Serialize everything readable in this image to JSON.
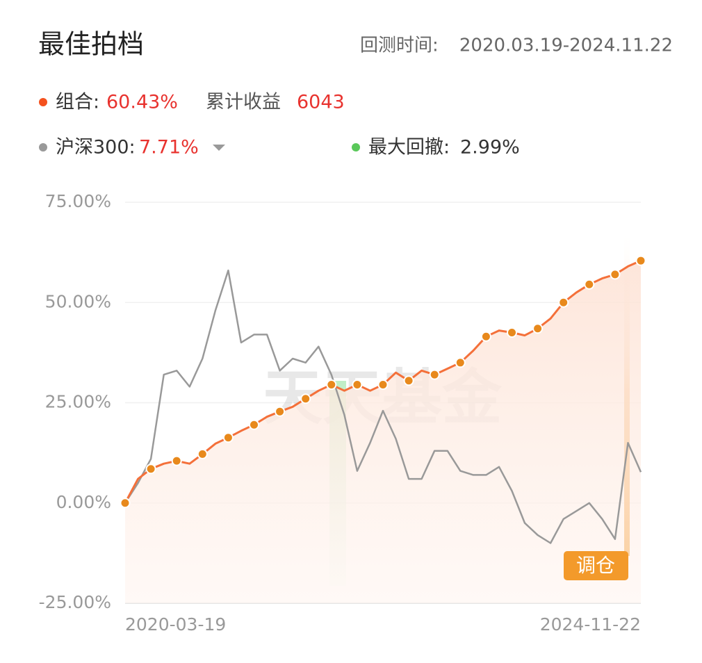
{
  "header": {
    "title": "最佳拍档",
    "period_label": "回测时间:",
    "period": "2020.03.19-2024.11.22"
  },
  "legend": {
    "portfolio_label": "组合:",
    "portfolio_return": "60.43%",
    "cumulative_label": "累计收益",
    "cumulative_value": "6043",
    "benchmark_label": "沪深300:",
    "benchmark_return": "7.71%",
    "drawdown_label": "最大回撤:",
    "drawdown_value": "2.99%"
  },
  "watermark": "天天基金",
  "badge": "调仓",
  "chart_data": {
    "type": "line",
    "categories": [
      "2020-03-19",
      null,
      null,
      null,
      null,
      null,
      null,
      null,
      null,
      null,
      null,
      null,
      null,
      null,
      null,
      null,
      null,
      null,
      null,
      null,
      null,
      null,
      null,
      null,
      null,
      null,
      null,
      null,
      null,
      null,
      null,
      null,
      null,
      null,
      null,
      null,
      null,
      null,
      null,
      null,
      "2024-11-22"
    ],
    "series": [
      {
        "name": "组合",
        "color": "#f4703a",
        "values": [
          0,
          6,
          8.5,
          9.8,
          10.5,
          9.8,
          12.2,
          14.8,
          16.3,
          18,
          19.5,
          21.5,
          22.8,
          24,
          26,
          28,
          29.5,
          28,
          29.5,
          28,
          29.5,
          32.5,
          30.5,
          33,
          32,
          33.5,
          35,
          38,
          41.5,
          43,
          42.5,
          41.8,
          43.5,
          46,
          50,
          52.5,
          54.5,
          56,
          57,
          59,
          60.43
        ]
      },
      {
        "name": "沪深300",
        "color": "#999999",
        "values": [
          0,
          5,
          11,
          32,
          33,
          29,
          36,
          48,
          58,
          40,
          42,
          42,
          33,
          36,
          35,
          39,
          32,
          22,
          8,
          15,
          23,
          16,
          6,
          6,
          13,
          13,
          8,
          7,
          7,
          9,
          3,
          -5,
          -8,
          -10,
          -4,
          -2,
          0,
          -4,
          -9,
          15,
          7.71
        ]
      }
    ],
    "ylim": [
      -25,
      75
    ],
    "yticks": [
      {
        "value": -25,
        "label": "-25.00%"
      },
      {
        "value": 0,
        "label": "0.00%"
      },
      {
        "value": 25,
        "label": "25.00%"
      },
      {
        "value": 50,
        "label": "50.00%"
      },
      {
        "value": 75,
        "label": "75.00%"
      }
    ],
    "grid": true
  }
}
